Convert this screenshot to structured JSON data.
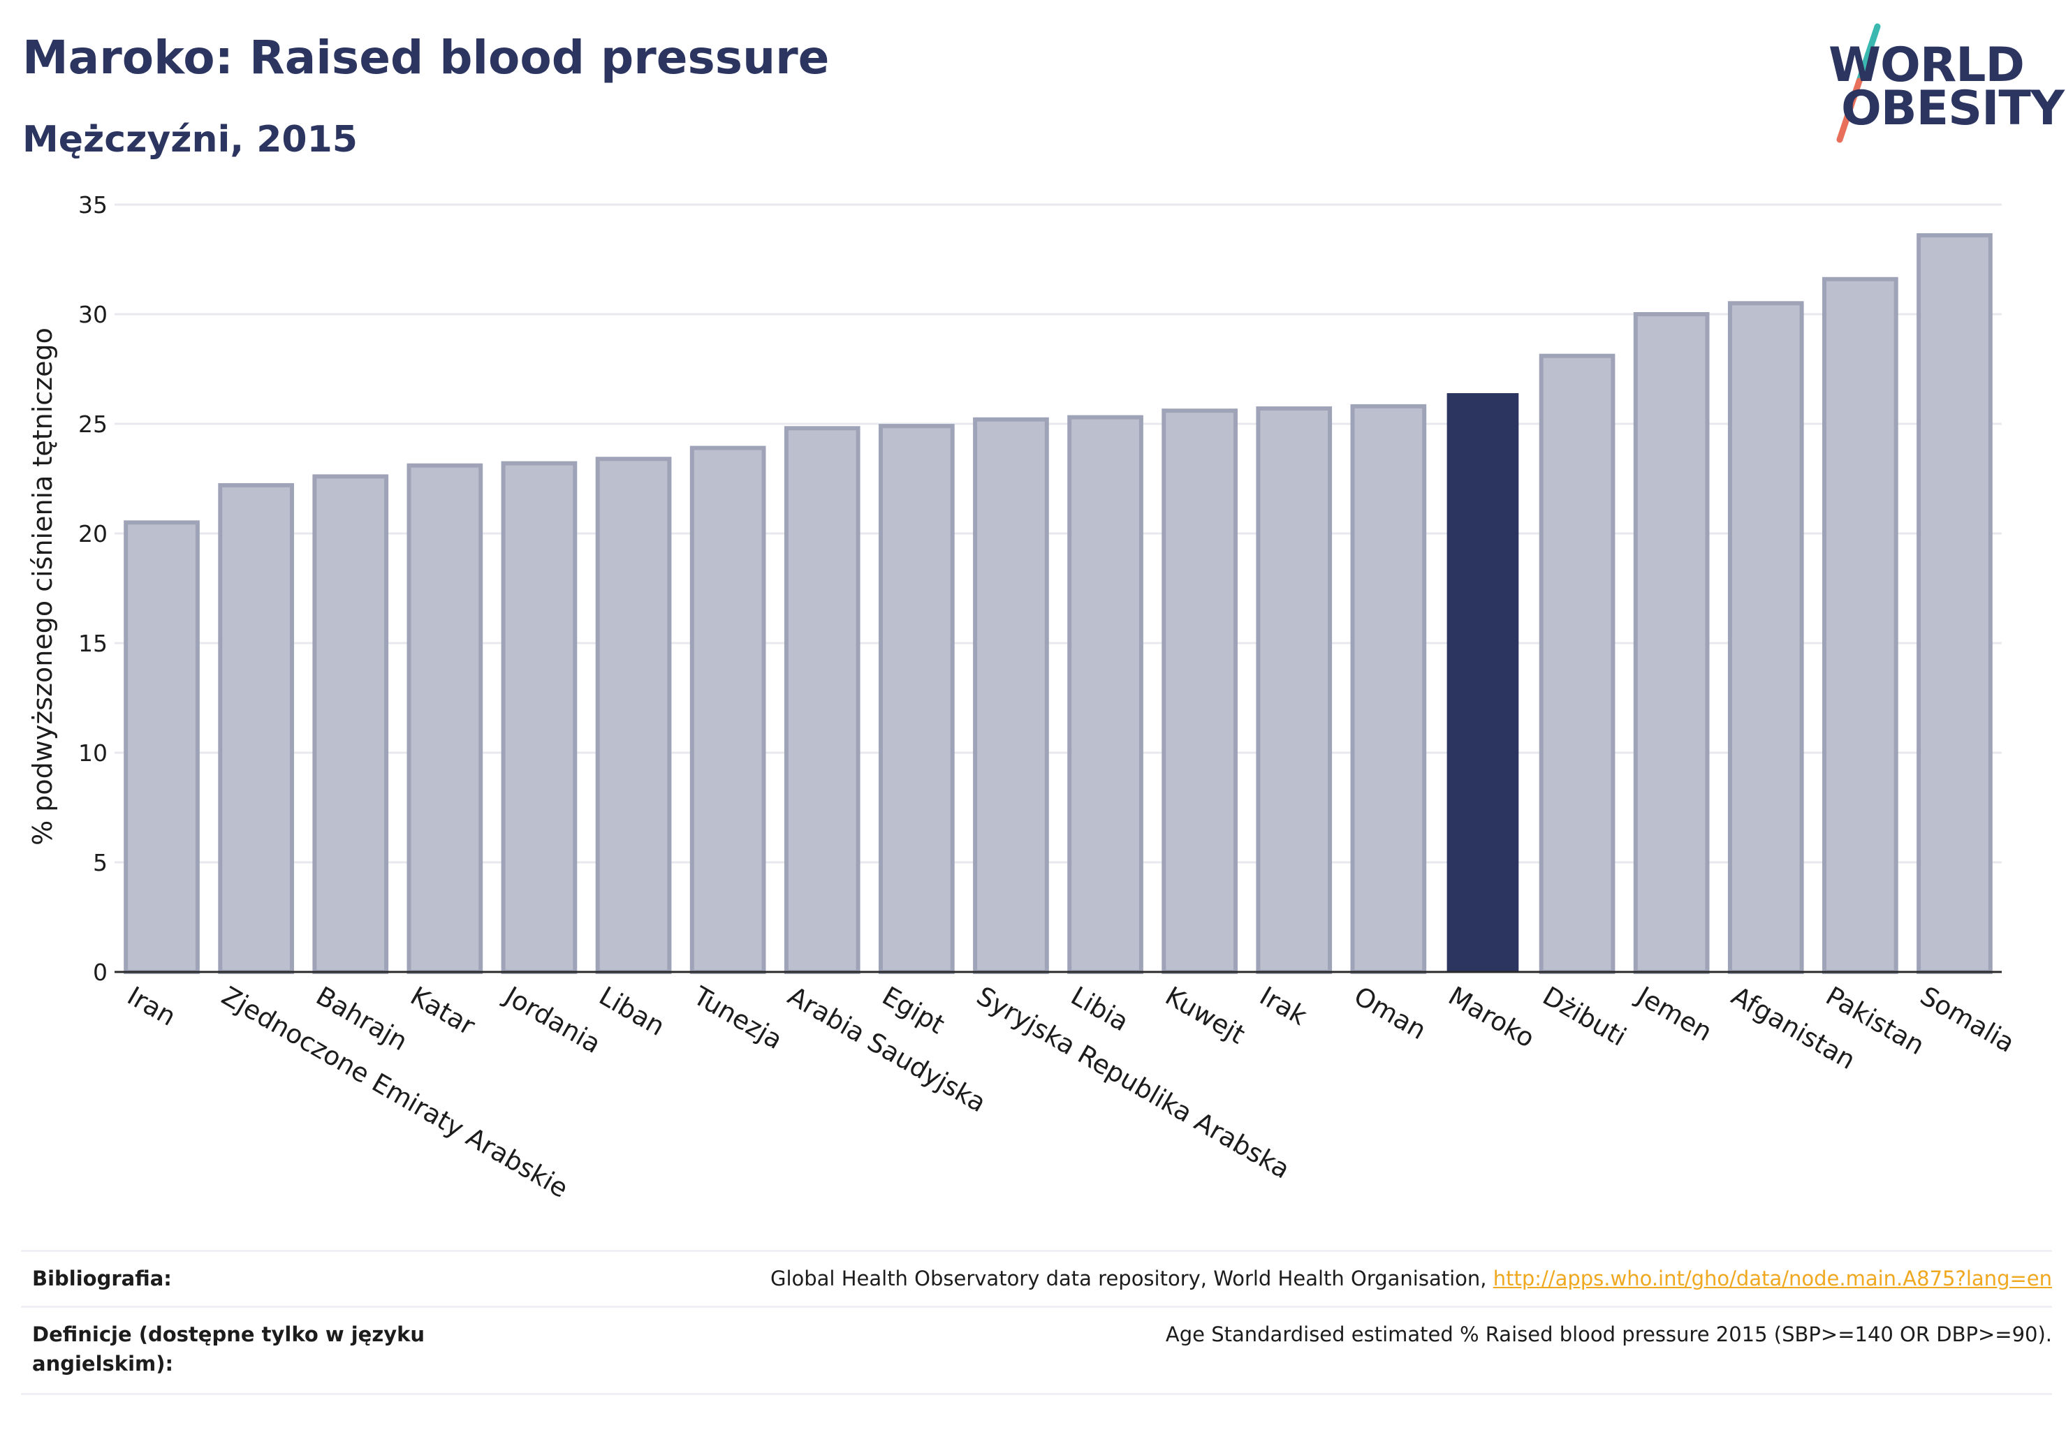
{
  "header": {
    "title": "Maroko: Raised blood pressure",
    "subtitle": "Mężczyźni, 2015"
  },
  "logo": {
    "line1": "WORLD",
    "line2": "OBESITY",
    "colors": {
      "text": "#2b3560",
      "slash_top": "#3bb8b0",
      "slash_bottom": "#e8705a"
    }
  },
  "colors": {
    "highlight_bar": "#2b3560",
    "other_bar_fill": "#bcc0ce",
    "other_bar_stroke": "#9ea3b8",
    "grid": "#e8e9ef",
    "link": "#f0a820"
  },
  "chart_data": {
    "type": "bar",
    "title": "Maroko: Raised blood pressure",
    "subtitle": "Mężczyźni, 2015",
    "ylabel": "% podwyższonego ciśnienia tętniczego",
    "xlabel": "",
    "ylim": [
      0,
      35
    ],
    "yticks": [
      0,
      5,
      10,
      15,
      20,
      25,
      30,
      35
    ],
    "grid": true,
    "highlight": "Maroko",
    "categories": [
      "Iran",
      "Zjednoczone Emiraty Arabskie",
      "Bahrajn",
      "Katar",
      "Jordania",
      "Liban",
      "Tunezja",
      "Arabia Saudyjska",
      "Egipt",
      "Syryjska Republika Arabska",
      "Libia",
      "Kuwejt",
      "Irak",
      "Oman",
      "Maroko",
      "Dżibuti",
      "Jemen",
      "Afganistan",
      "Pakistan",
      "Somalia"
    ],
    "values": [
      20.5,
      22.2,
      22.6,
      23.1,
      23.2,
      23.4,
      23.9,
      24.8,
      24.9,
      25.2,
      25.3,
      25.6,
      25.7,
      25.8,
      26.4,
      28.1,
      30.0,
      30.5,
      31.6,
      33.6
    ]
  },
  "footer": {
    "bibliography_label": "Bibliografia:",
    "bibliography_text": "Global Health Observatory data repository, World Health Organisation,",
    "bibliography_link": "http://apps.who.int/gho/data/node.main.A875?lang=en",
    "definitions_label": "Definicje (dostępne tylko w języku angielskim):",
    "definitions_text": "Age Standardised estimated % Raised blood pressure 2015 (SBP>=140 OR DBP>=90)."
  }
}
